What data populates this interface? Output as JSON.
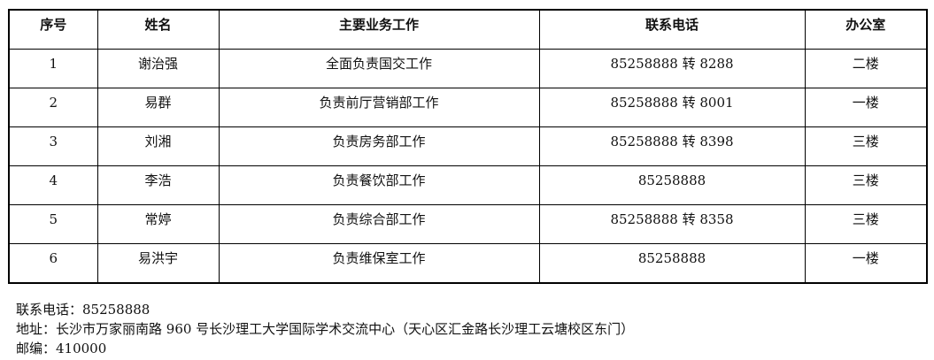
{
  "table": {
    "headers": [
      "序号",
      "姓名",
      "主要业务工作",
      "联系电话",
      "办公室"
    ],
    "rows": [
      [
        "1",
        "谢治强",
        "全面负责国交工作",
        "85258888 转 8288",
        "二楼"
      ],
      [
        "2",
        "易群",
        "负责前厅营销部工作",
        "85258888 转 8001",
        "一楼"
      ],
      [
        "3",
        "刘湘",
        "负责房务部工作",
        "85258888 转 8398",
        "三楼"
      ],
      [
        "4",
        "李浩",
        "负责餐饮部工作",
        "85258888",
        "三楼"
      ],
      [
        "5",
        "常婷",
        "负责综合部工作",
        "85258888 转 8358",
        "三楼"
      ],
      [
        "6",
        "易洪宇",
        "负责维保室工作",
        "85258888",
        "一楼"
      ]
    ]
  },
  "footer": {
    "phone": "联系电话：85258888",
    "address": "地址：长沙市万家丽南路 960 号长沙理工大学国际学术交流中心（天心区汇金路长沙理工云塘校区东门）",
    "postcode": "邮编：410000"
  }
}
